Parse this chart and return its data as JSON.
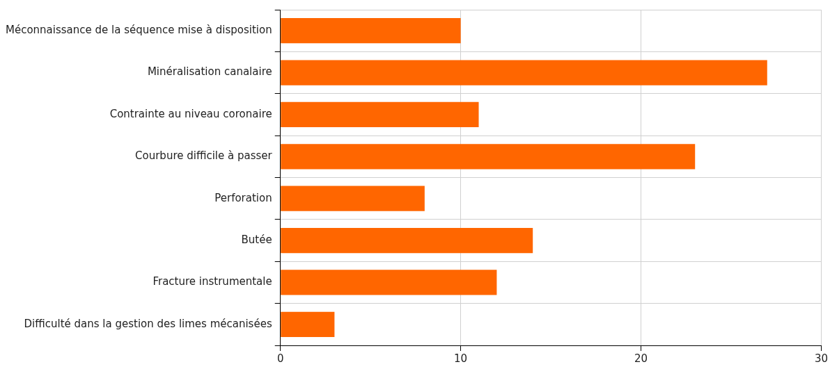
{
  "chart_data": {
    "type": "bar",
    "orientation": "horizontal",
    "categories": [
      "Méconnaissance de la séquence mise à disposition",
      "Minéralisation canalaire",
      "Contrainte au niveau coronaire",
      "Courbure difficile à passer",
      "Perforation",
      "Butée",
      "Fracture instrumentale",
      "Difficulté dans la gestion des limes mécanisées"
    ],
    "values": [
      10,
      27,
      11,
      23,
      8,
      14,
      12,
      3
    ],
    "color": "#ff6600",
    "xlim": [
      0,
      30
    ],
    "xticks": [
      0,
      10,
      20,
      30
    ],
    "grid": true,
    "legend": false
  }
}
